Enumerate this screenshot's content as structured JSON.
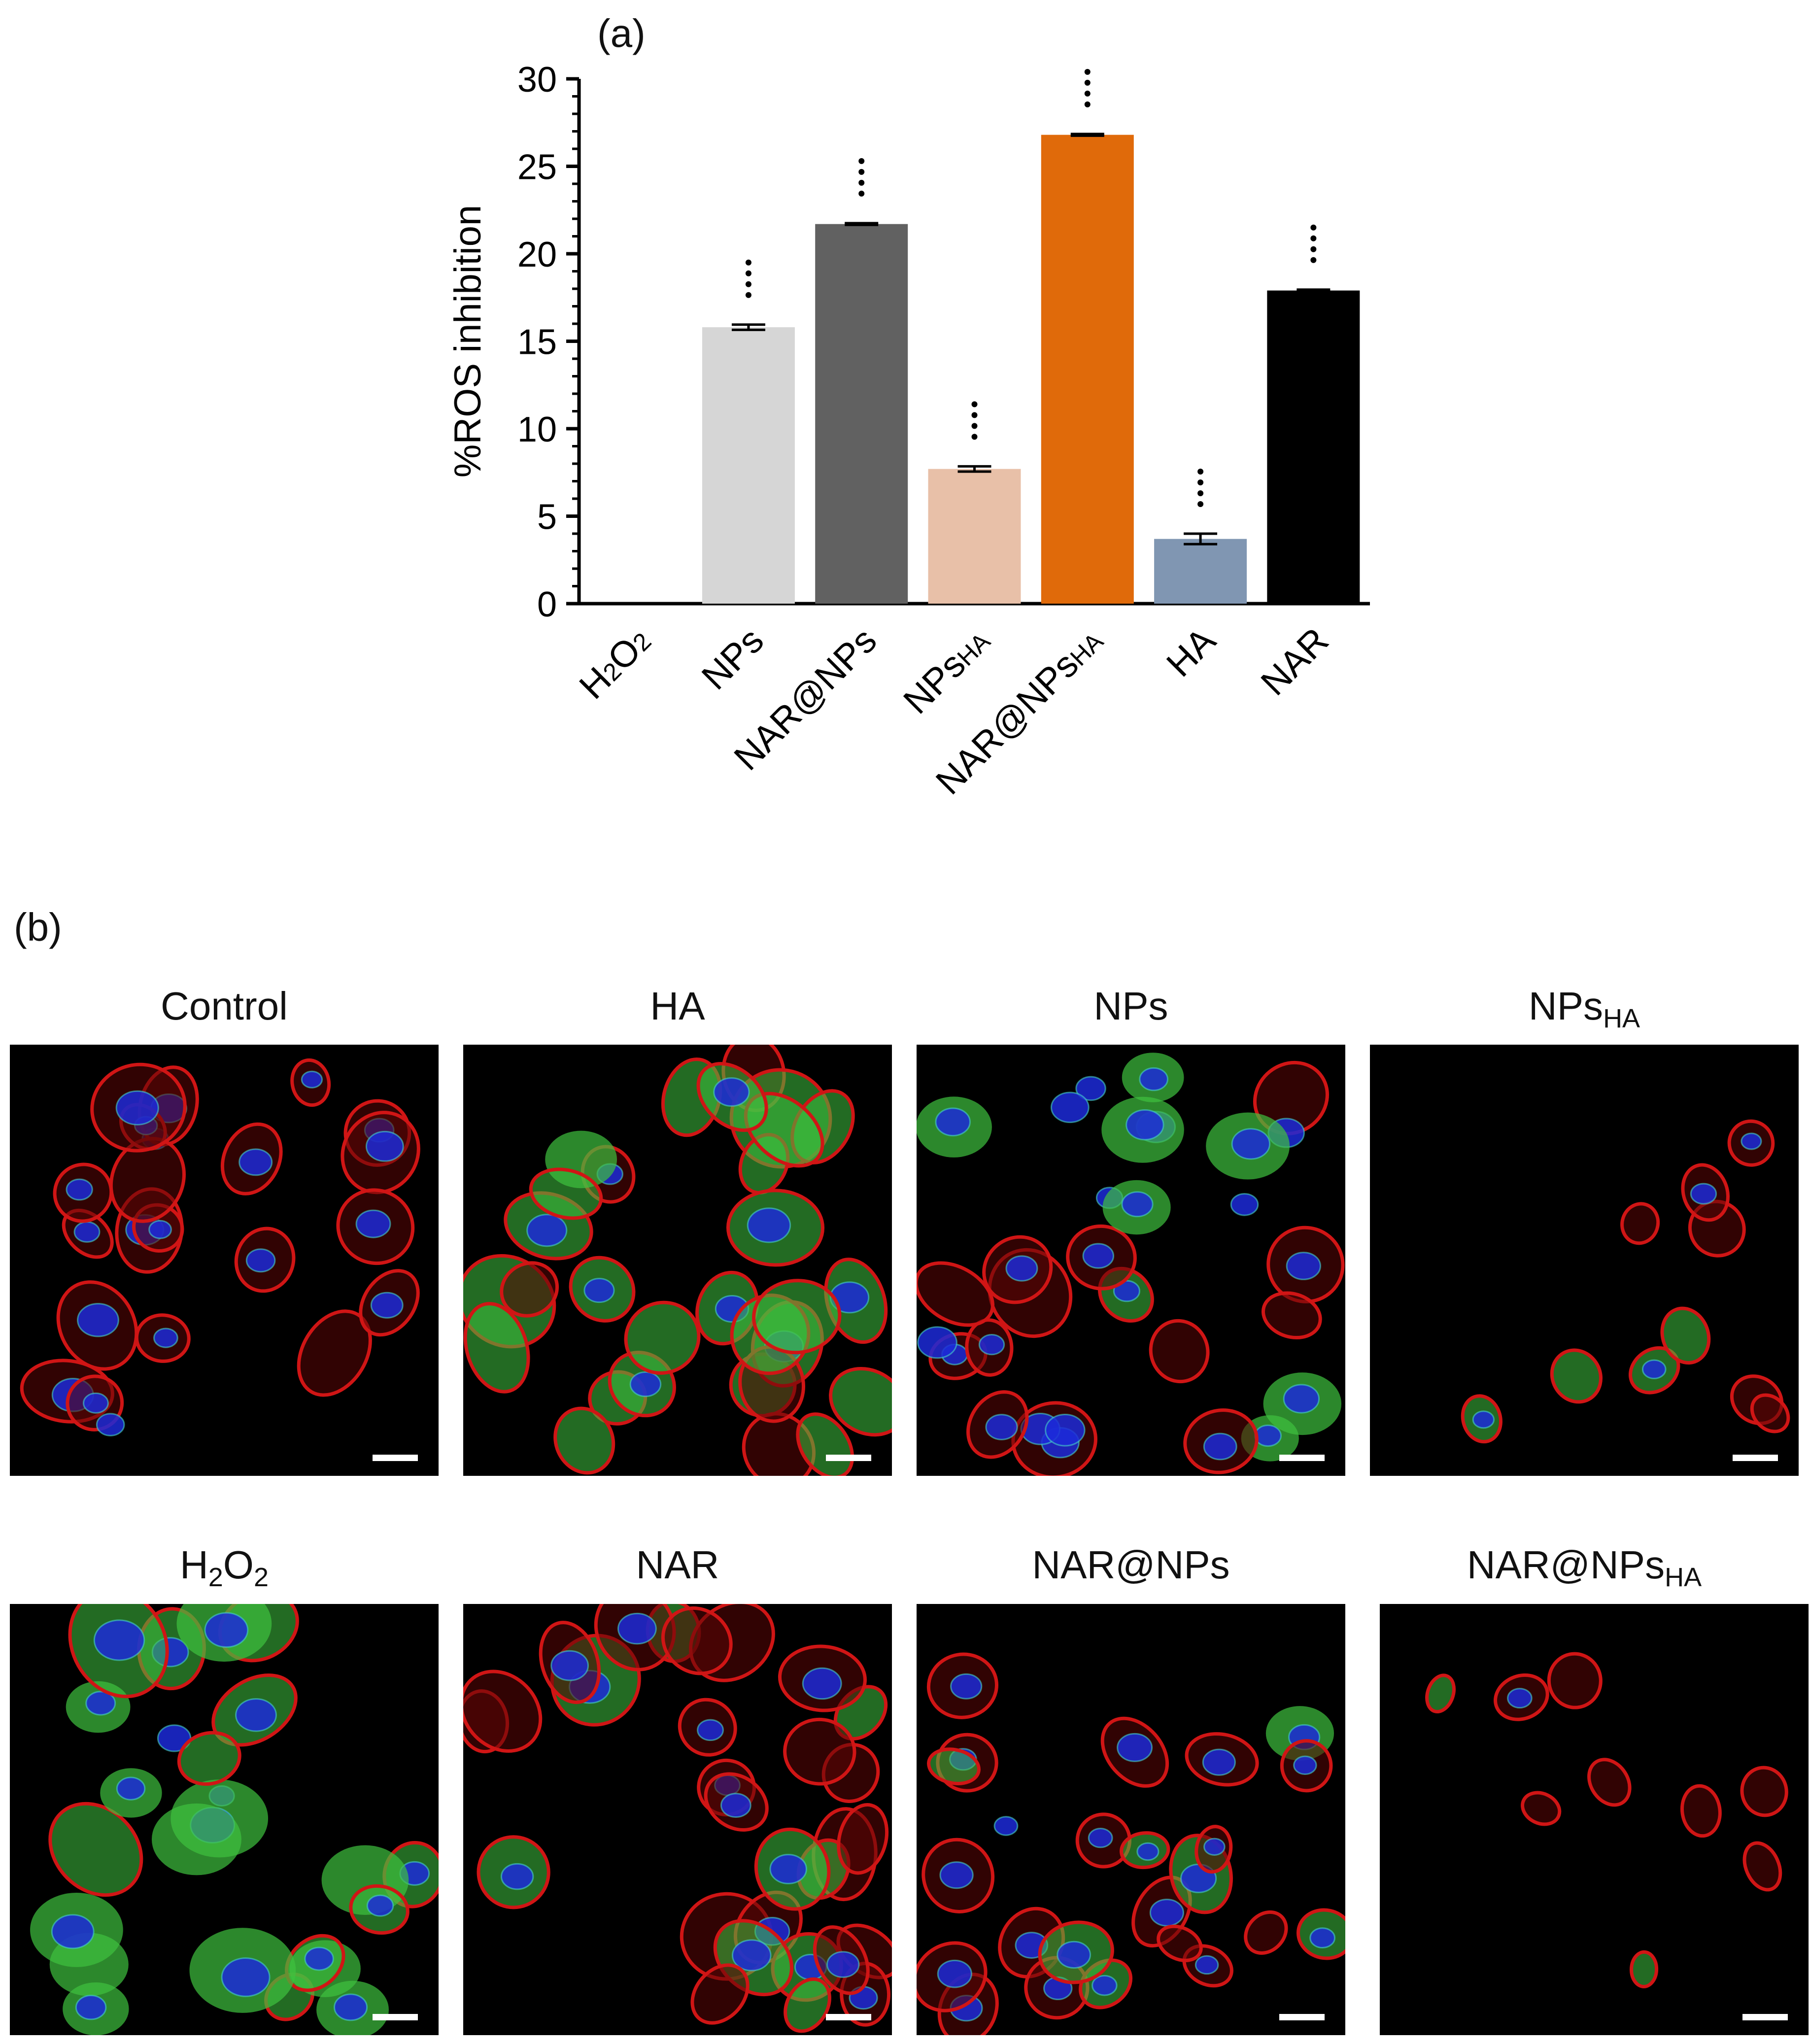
{
  "panels": {
    "a": "(a)",
    "b": "(b)"
  },
  "chart_data": {
    "type": "bar",
    "ylabel": "%ROS inhibition",
    "ylim": [
      0,
      30
    ],
    "yticks": [
      0,
      5,
      10,
      15,
      20,
      25,
      30
    ],
    "categories": [
      {
        "base": "H",
        "sub": "2",
        "base2": "O",
        "sub2": "2",
        "label": "H2O2"
      },
      {
        "base": "NPs",
        "label": "NPs"
      },
      {
        "base": "NAR@NPs",
        "label": "NAR@NPs"
      },
      {
        "base": "NPs",
        "sub": "HA",
        "label": "NPsHA"
      },
      {
        "base": "NAR@NPs",
        "sub": "HA",
        "label": "NAR@NPsHA"
      },
      {
        "base": "HA",
        "label": "HA"
      },
      {
        "base": "NAR",
        "label": "NAR"
      }
    ],
    "values": [
      0,
      15.8,
      21.7,
      7.7,
      26.8,
      3.7,
      17.9
    ],
    "errors": [
      0,
      0.15,
      0.05,
      0.15,
      0.05,
      0.3,
      0.05
    ],
    "significance": [
      "",
      "****",
      "****",
      "****",
      "****",
      "****",
      "****"
    ],
    "colors": [
      "#ffffff",
      "#d6d6d6",
      "#616161",
      "#e8c0a8",
      "#e06a0a",
      "#8096b2",
      "#000000"
    ]
  },
  "micrographs": [
    {
      "title": "Control",
      "theme": "control"
    },
    {
      "title": "HA",
      "theme": "green-red"
    },
    {
      "title": "NPs",
      "theme": "blue-green"
    },
    {
      "title": "NPs",
      "title_sub": "HA",
      "theme": "sparse"
    },
    {
      "title": "H",
      "title_sub": "2",
      "title2": "O",
      "title_sub2": "2",
      "theme": "green"
    },
    {
      "title": "NAR",
      "theme": "red"
    },
    {
      "title": "NAR@NPs",
      "theme": "red-blue"
    },
    {
      "title": "NAR@NPs",
      "title_sub": "HA",
      "theme": "sparse2"
    }
  ],
  "colors": {
    "red_stain": "#d01515",
    "green_stain": "#3fc23f",
    "blue_stain": "#1c2ad8"
  }
}
